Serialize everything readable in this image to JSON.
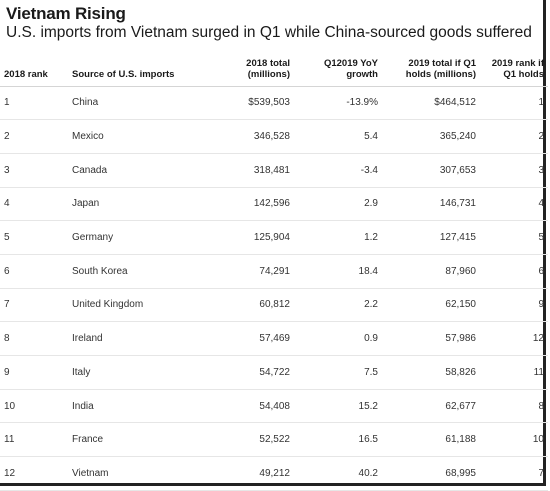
{
  "chart_data": {
    "type": "table",
    "title": "Vietnam Rising",
    "subtitle": "U.S. imports from Vietnam surged in Q1 while China-sourced goods suffered",
    "columns": [
      "2018 rank",
      "Source of U.S. imports",
      "2018 total\n(millions)",
      "Q12019 YoY\ngrowth",
      "2019 total if Q1\nholds (millions)",
      "2019 rank if\nQ1 holds"
    ],
    "rows": [
      {
        "rank": "1",
        "source": "China",
        "total_2018": "$539,503",
        "growth": "-13.9%",
        "total_2019": "$464,512",
        "rank_2019": "1"
      },
      {
        "rank": "2",
        "source": "Mexico",
        "total_2018": "346,528",
        "growth": "5.4",
        "total_2019": "365,240",
        "rank_2019": "2"
      },
      {
        "rank": "3",
        "source": "Canada",
        "total_2018": "318,481",
        "growth": "-3.4",
        "total_2019": "307,653",
        "rank_2019": "3"
      },
      {
        "rank": "4",
        "source": "Japan",
        "total_2018": "142,596",
        "growth": "2.9",
        "total_2019": "146,731",
        "rank_2019": "4"
      },
      {
        "rank": "5",
        "source": "Germany",
        "total_2018": "125,904",
        "growth": "1.2",
        "total_2019": "127,415",
        "rank_2019": "5"
      },
      {
        "rank": "6",
        "source": "South Korea",
        "total_2018": "74,291",
        "growth": "18.4",
        "total_2019": "87,960",
        "rank_2019": "6"
      },
      {
        "rank": "7",
        "source": "United Kingdom",
        "total_2018": "60,812",
        "growth": "2.2",
        "total_2019": "62,150",
        "rank_2019": "9"
      },
      {
        "rank": "8",
        "source": "Ireland",
        "total_2018": "57,469",
        "growth": "0.9",
        "total_2019": "57,986",
        "rank_2019": "12"
      },
      {
        "rank": "9",
        "source": "Italy",
        "total_2018": "54,722",
        "growth": "7.5",
        "total_2019": "58,826",
        "rank_2019": "11"
      },
      {
        "rank": "10",
        "source": "India",
        "total_2018": "54,408",
        "growth": "15.2",
        "total_2019": "62,677",
        "rank_2019": "8"
      },
      {
        "rank": "11",
        "source": "France",
        "total_2018": "52,522",
        "growth": "16.5",
        "total_2019": "61,188",
        "rank_2019": "10"
      },
      {
        "rank": "12",
        "source": "Vietnam",
        "total_2018": "49,212",
        "growth": "40.2",
        "total_2019": "68,995",
        "rank_2019": "7"
      }
    ],
    "colors": {
      "negative": "#e8322f",
      "positive": "#2ebd4f"
    }
  }
}
